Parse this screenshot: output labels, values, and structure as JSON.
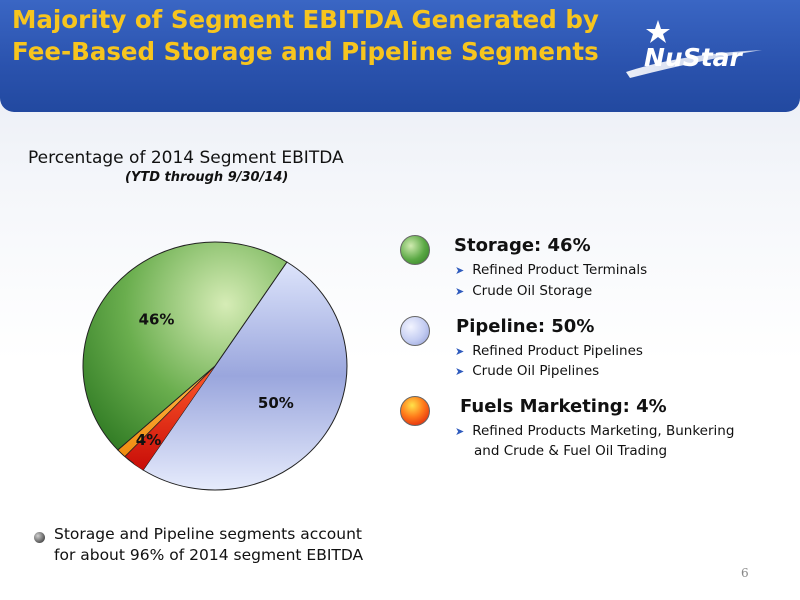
{
  "header": {
    "title": "Majority of Segment EBITDA Generated by Fee-Based Storage and Pipeline Segments",
    "logo_text": "NuStar"
  },
  "chart_data": {
    "type": "pie",
    "title": "Percentage of 2014 Segment EBITDA",
    "subtitle": "(YTD through 9/30/14)",
    "categories": [
      "Storage",
      "Pipeline",
      "Fuels Marketing"
    ],
    "values": [
      46,
      50,
      4
    ],
    "data_labels": [
      "46%",
      "50%",
      "4%"
    ],
    "colors": [
      "#4c9a3c",
      "#a9b6e6",
      "#e81e12"
    ],
    "legend_position": "right"
  },
  "legend": [
    {
      "heading": "Storage: 46%",
      "items": [
        "Refined Product Terminals",
        "Crude Oil Storage"
      ]
    },
    {
      "heading": "Pipeline: 50%",
      "items": [
        "Refined Product Pipelines",
        "Crude Oil Pipelines"
      ]
    },
    {
      "heading": "Fuels Marketing: 4%",
      "items": [
        "Refined Products Marketing, Bunkering",
        "and Crude & Fuel Oil Trading"
      ]
    }
  ],
  "note": {
    "line1": "Storage and Pipeline segments account",
    "line2": "for about 96% of 2014 segment EBITDA"
  },
  "page_number": "6"
}
